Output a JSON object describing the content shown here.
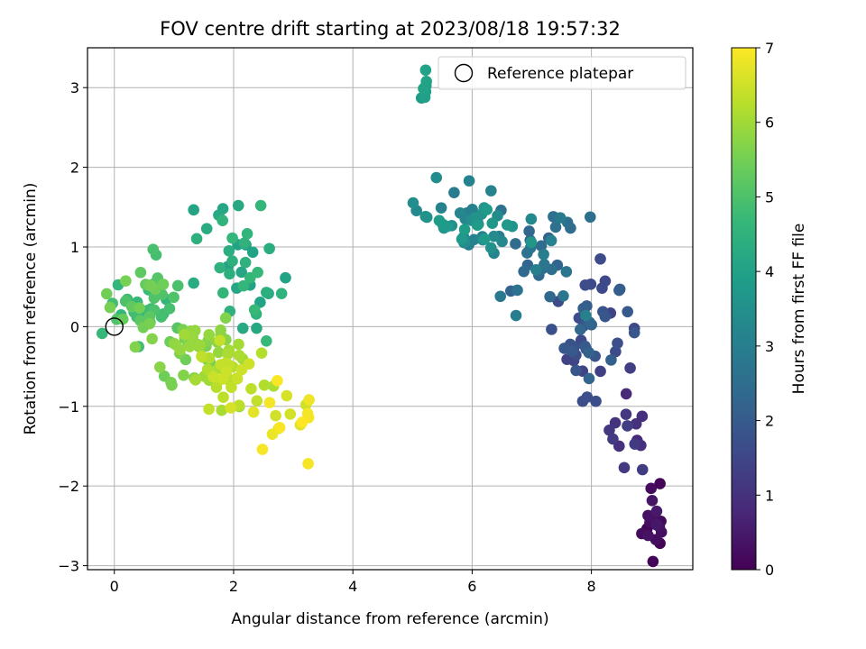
{
  "chart_data": {
    "type": "scatter",
    "title": "FOV centre drift starting at 2023/08/18 19:57:32",
    "xlabel": "Angular distance from reference (arcmin)",
    "ylabel": "Rotation from reference (arcmin)",
    "xlim": [
      -0.45,
      9.7
    ],
    "ylim": [
      -3.05,
      3.5
    ],
    "xticks": [
      0,
      2,
      4,
      6,
      8
    ],
    "yticks": [
      -3,
      -2,
      -1,
      0,
      1,
      2,
      3
    ],
    "xtick_labels": [
      "0",
      "2",
      "4",
      "6",
      "8"
    ],
    "ytick_labels": [
      "−3",
      "−2",
      "−1",
      "0",
      "1",
      "2",
      "3"
    ],
    "grid": true,
    "legend": {
      "placement": "top-right",
      "entries": [
        "Reference platepar"
      ]
    },
    "reference_point": {
      "x": 0,
      "y": 0,
      "label": "Reference platepar"
    },
    "colorbar": {
      "label": "Hours from first FF file",
      "range": [
        0,
        7
      ],
      "ticks": [
        0,
        1,
        2,
        3,
        4,
        5,
        6,
        7
      ],
      "tick_labels": [
        "0",
        "1",
        "2",
        "3",
        "4",
        "5",
        "6",
        "7"
      ],
      "colormap": "viridis"
    },
    "clusters": [
      {
        "cx": 9.05,
        "cy": -2.45,
        "sx": 0.1,
        "sy": 0.28,
        "n": 12,
        "h0": 0.05,
        "h1": 0.55
      },
      {
        "cx": 8.65,
        "cy": -1.35,
        "sx": 0.18,
        "sy": 0.25,
        "n": 10,
        "h0": 0.8,
        "h1": 1.3
      },
      {
        "cx": 7.95,
        "cy": -0.1,
        "sx": 0.35,
        "sy": 0.38,
        "n": 45,
        "h0": 1.3,
        "h1": 2.3
      },
      {
        "cx": 7.1,
        "cy": 0.8,
        "sx": 0.4,
        "sy": 0.3,
        "n": 32,
        "h0": 2.2,
        "h1": 3.1
      },
      {
        "cx": 6.0,
        "cy": 1.3,
        "sx": 0.45,
        "sy": 0.22,
        "n": 45,
        "h0": 2.9,
        "h1": 3.9
      },
      {
        "cx": 5.25,
        "cy": 2.95,
        "sx": 0.05,
        "sy": 0.15,
        "n": 4,
        "h0": 3.8,
        "h1": 4.2
      },
      {
        "cx": 2.1,
        "cy": 0.75,
        "sx": 0.35,
        "sy": 0.35,
        "n": 35,
        "h0": 4.0,
        "h1": 4.7
      },
      {
        "cx": 0.5,
        "cy": 0.3,
        "sx": 0.32,
        "sy": 0.25,
        "n": 45,
        "h0": 4.6,
        "h1": 5.6
      },
      {
        "cx": 1.1,
        "cy": -0.25,
        "sx": 0.35,
        "sy": 0.22,
        "n": 35,
        "h0": 5.4,
        "h1": 6.0
      },
      {
        "cx": 1.9,
        "cy": -0.65,
        "sx": 0.35,
        "sy": 0.25,
        "n": 40,
        "h0": 5.9,
        "h1": 6.6
      },
      {
        "cx": 2.8,
        "cy": -1.1,
        "sx": 0.3,
        "sy": 0.2,
        "n": 14,
        "h0": 6.5,
        "h1": 7.0
      }
    ],
    "points": [
      {
        "x": 9.15,
        "y": -1.97,
        "h": 0.1
      },
      {
        "x": 9.0,
        "y": -2.03,
        "h": 0.2
      },
      {
        "x": 8.95,
        "y": -2.37,
        "h": 0.3
      },
      {
        "x": 9.08,
        "y": -2.42,
        "h": 0.25
      },
      {
        "x": 8.95,
        "y": -2.62,
        "h": 0.35
      },
      {
        "x": 9.15,
        "y": -2.72,
        "h": 0.05
      },
      {
        "x": 8.75,
        "y": -1.22,
        "h": 1.0
      },
      {
        "x": 8.3,
        "y": -1.3,
        "h": 1.15
      },
      {
        "x": 8.55,
        "y": -1.77,
        "h": 1.2
      },
      {
        "x": 8.58,
        "y": -1.1,
        "h": 1.1
      },
      {
        "x": 8.65,
        "y": -0.52,
        "h": 1.3
      },
      {
        "x": 8.15,
        "y": 0.85,
        "h": 1.6
      },
      {
        "x": 5.95,
        "y": 1.83,
        "h": 3.1
      },
      {
        "x": 5.4,
        "y": 1.87,
        "h": 3.4
      },
      {
        "x": 5.22,
        "y": 3.22,
        "h": 4.0
      },
      {
        "x": 5.22,
        "y": 2.95,
        "h": 3.9
      },
      {
        "x": 5.15,
        "y": 2.87,
        "h": 3.85
      },
      {
        "x": 1.75,
        "y": 1.4,
        "h": 4.2
      },
      {
        "x": 1.55,
        "y": 1.23,
        "h": 4.3
      },
      {
        "x": 2.6,
        "y": 0.98,
        "h": 4.35
      },
      {
        "x": 2.55,
        "y": 0.43,
        "h": 4.4
      },
      {
        "x": 2.55,
        "y": -0.18,
        "h": 4.7
      },
      {
        "x": 0.7,
        "y": 0.9,
        "h": 4.9
      },
      {
        "x": 0.65,
        "y": 0.97,
        "h": 4.95
      },
      {
        "x": 0.95,
        "y": -0.7,
        "h": 5.55
      },
      {
        "x": 3.25,
        "y": -1.72,
        "h": 6.9
      },
      {
        "x": 2.65,
        "y": -1.35,
        "h": 6.8
      },
      {
        "x": 1.8,
        "y": -1.05,
        "h": 6.1
      },
      {
        "x": 3.15,
        "y": -1.2,
        "h": 7.0
      }
    ]
  }
}
